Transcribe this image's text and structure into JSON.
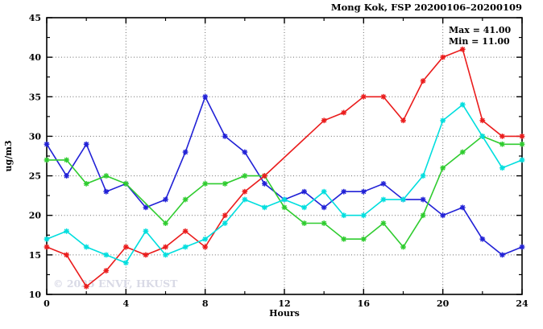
{
  "title": "Mong Kok, FSP 20200106–20200109",
  "annotation": {
    "max_label": "Max = 41.00",
    "min_label": "Min = 11.00"
  },
  "watermark": "© 2025 ENVF, HKUST",
  "chart_data": {
    "type": "line",
    "title": "Mong Kok, FSP 20200106–20200109",
    "xlabel": "Hours",
    "ylabel": "ug/m3",
    "xlim": [
      0,
      24
    ],
    "ylim": [
      10,
      45
    ],
    "x_ticks": [
      0,
      4,
      8,
      12,
      16,
      20,
      24
    ],
    "x_minor_step": 2,
    "y_ticks": [
      10,
      15,
      20,
      25,
      30,
      35,
      40,
      45
    ],
    "y_minor_step": 2.5,
    "grid_x": [
      4,
      8,
      12,
      16,
      20
    ],
    "grid_y": [
      15,
      20,
      25,
      30,
      35,
      40
    ],
    "grid_on": true,
    "legend": "none",
    "max": 41.0,
    "min": 11.0,
    "x": [
      0,
      1,
      2,
      3,
      4,
      5,
      6,
      7,
      8,
      9,
      10,
      11,
      12,
      13,
      14,
      15,
      16,
      17,
      18,
      19,
      20,
      21,
      22,
      23,
      24
    ],
    "series": [
      {
        "name": "series-blue",
        "color": "#2121d6",
        "values": [
          29,
          25,
          29,
          23,
          24,
          21,
          22,
          28,
          35,
          30,
          28,
          24,
          22,
          23,
          21,
          23,
          23,
          24,
          22,
          22,
          20,
          21,
          17,
          15,
          16
        ]
      },
      {
        "name": "series-green",
        "color": "#2fcc2f",
        "values": [
          27,
          27,
          24,
          25,
          24,
          null,
          19,
          22,
          24,
          24,
          25,
          25,
          21,
          19,
          19,
          17,
          17,
          19,
          16,
          20,
          26,
          28,
          30,
          29,
          29
        ]
      },
      {
        "name": "series-red",
        "color": "#ea1c1c",
        "values": [
          16,
          15,
          11,
          13,
          16,
          15,
          16,
          18,
          16,
          20,
          23,
          25,
          null,
          null,
          32,
          33,
          35,
          35,
          32,
          37,
          40,
          41,
          32,
          30,
          30
        ]
      },
      {
        "name": "series-cyan",
        "color": "#00dede",
        "values": [
          17,
          18,
          16,
          15,
          14,
          18,
          15,
          16,
          17,
          19,
          22,
          21,
          22,
          21,
          23,
          20,
          20,
          22,
          22,
          25,
          32,
          34,
          30,
          26,
          27
        ]
      }
    ]
  }
}
